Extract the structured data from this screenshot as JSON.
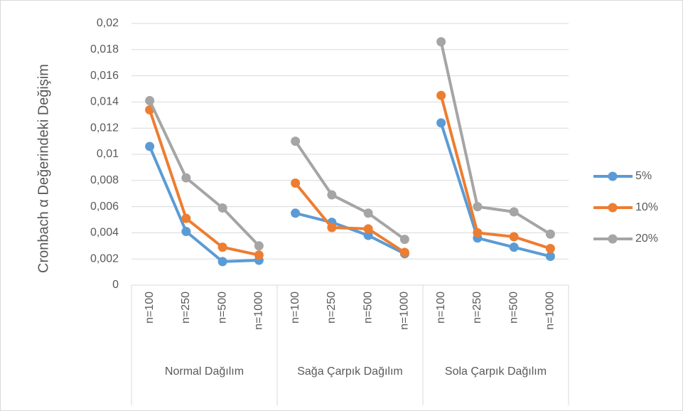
{
  "chart_data": {
    "type": "line",
    "y_label": "Cronbach α Değerindeki Değişim",
    "groups": [
      {
        "label": "Normal Dağılım",
        "categories": [
          "n=100",
          "n=250",
          "n=500",
          "n=1000"
        ]
      },
      {
        "label": "Sağa Çarpık Dağılım",
        "categories": [
          "n=100",
          "n=250",
          "n=500",
          "n=1000"
        ]
      },
      {
        "label": "Sola Çarpık Dağılım",
        "categories": [
          "n=100",
          "n=250",
          "n=500",
          "n=1000"
        ]
      }
    ],
    "series": [
      {
        "name": "5%",
        "color": "#5b9bd5",
        "values": [
          0.0106,
          0.0041,
          0.0018,
          0.0019,
          0.0055,
          0.0048,
          0.0038,
          0.0024,
          0.0124,
          0.0036,
          0.0029,
          0.0022
        ]
      },
      {
        "name": "10%",
        "color": "#ed7d31",
        "values": [
          0.0134,
          0.0051,
          0.0029,
          0.0023,
          0.0078,
          0.0044,
          0.0043,
          0.0025,
          0.0145,
          0.004,
          0.0037,
          0.0028
        ]
      },
      {
        "name": "20%",
        "color": "#a5a5a5",
        "values": [
          0.0141,
          0.0082,
          0.0059,
          0.003,
          0.011,
          0.0069,
          0.0055,
          0.0035,
          0.0186,
          0.006,
          0.0056,
          0.0039
        ]
      }
    ],
    "ylim": [
      0,
      0.02
    ],
    "yticks": [
      0,
      {
        "value": 0.002,
        "label": "0,002"
      },
      {
        "value": 0.004,
        "label": "0,004"
      },
      {
        "value": 0.006,
        "label": "0,006"
      },
      {
        "value": 0.008,
        "label": "0,008"
      },
      {
        "value": 0.01,
        "label": "0,01"
      },
      {
        "value": 0.012,
        "label": "0,012"
      },
      {
        "value": 0.014,
        "label": "0,014"
      },
      {
        "value": 0.016,
        "label": "0,016"
      },
      {
        "value": 0.018,
        "label": "0,018"
      },
      {
        "value": 0.02,
        "label": "0,02"
      }
    ],
    "grid": true,
    "legend": "right"
  }
}
